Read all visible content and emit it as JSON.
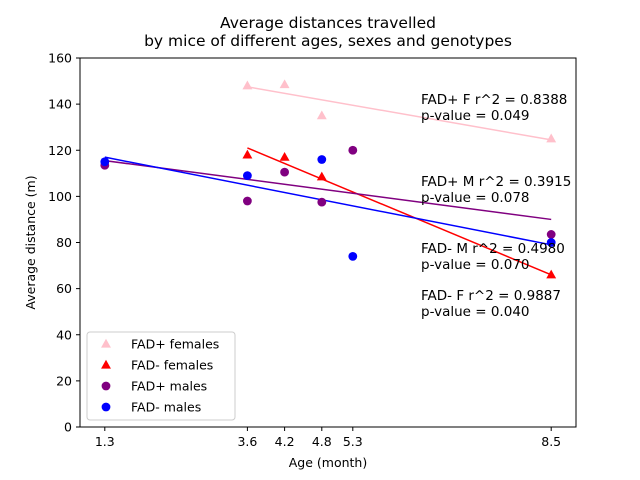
{
  "chart_data": {
    "type": "scatter",
    "title": [
      "Average distances travelled",
      "by mice of different ages, sexes and genotypes"
    ],
    "xlabel": "Age (month)",
    "ylabel": "Average distance (m)",
    "xlim": [
      0.9,
      8.9
    ],
    "ylim": [
      0,
      160
    ],
    "xticks": [
      1.3,
      3.6,
      4.2,
      4.8,
      5.3,
      8.5
    ],
    "xtick_labels": [
      "1.3",
      "3.6",
      "4.2",
      "4.8",
      "5.3",
      "8.5"
    ],
    "yticks": [
      0,
      20,
      40,
      60,
      80,
      100,
      120,
      140,
      160
    ],
    "grid": false,
    "legend_position": "lower-left",
    "series": [
      {
        "name": "FAD+ females",
        "marker": "triangle",
        "color": "#ffc0cb",
        "points": [
          [
            3.6,
            148
          ],
          [
            4.2,
            148.5
          ],
          [
            4.8,
            135
          ],
          [
            8.5,
            125
          ]
        ],
        "fit": [
          [
            3.6,
            147.5
          ],
          [
            8.5,
            124.5
          ]
        ]
      },
      {
        "name": "FAD- females",
        "marker": "triangle",
        "color": "#ff0000",
        "points": [
          [
            3.6,
            118
          ],
          [
            4.2,
            117
          ],
          [
            4.8,
            108.5
          ],
          [
            8.5,
            66
          ]
        ],
        "fit": [
          [
            3.6,
            121
          ],
          [
            8.5,
            66
          ]
        ]
      },
      {
        "name": "FAD+ males",
        "marker": "circle",
        "color": "#800080",
        "points": [
          [
            1.3,
            113.5
          ],
          [
            3.6,
            98
          ],
          [
            4.2,
            110.5
          ],
          [
            4.8,
            97.5
          ],
          [
            5.3,
            120
          ],
          [
            8.5,
            83.5
          ]
        ],
        "fit": [
          [
            1.3,
            115.5
          ],
          [
            8.5,
            90
          ]
        ]
      },
      {
        "name": "FAD- males",
        "marker": "circle",
        "color": "#0000ff",
        "points": [
          [
            1.3,
            115
          ],
          [
            3.6,
            109
          ],
          [
            4.8,
            116
          ],
          [
            5.3,
            74
          ],
          [
            8.5,
            80
          ]
        ],
        "fit": [
          [
            1.3,
            117
          ],
          [
            8.5,
            79
          ]
        ]
      }
    ],
    "annotations": [
      {
        "lines": [
          "FAD+ F r^2 = 0.8388",
          "p-value = 0.049"
        ],
        "x": 6.4,
        "y": 140
      },
      {
        "lines": [
          "FAD+ M r^2 = 0.3915",
          "p-value = 0.078"
        ],
        "x": 6.4,
        "y": 104.5
      },
      {
        "lines": [
          "FAD- M r^2 = 0.4980",
          "p-value = 0.070"
        ],
        "x": 6.4,
        "y": 75.5
      },
      {
        "lines": [
          "FAD- F r^2 = 0.9887",
          "p-value = 0.040"
        ],
        "x": 6.4,
        "y": 55
      }
    ]
  }
}
